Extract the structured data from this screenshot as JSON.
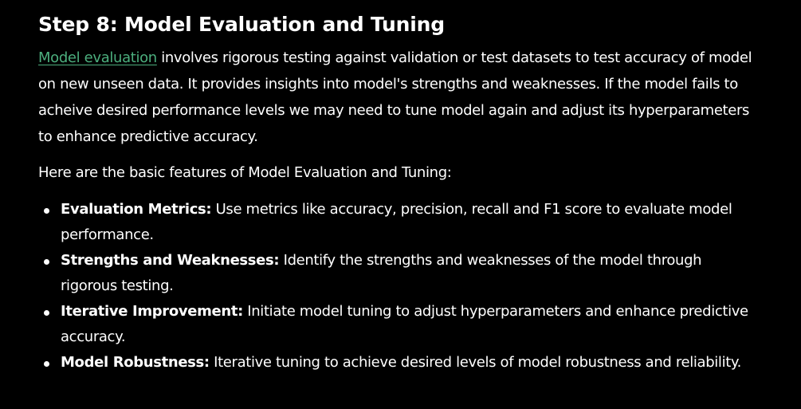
{
  "heading": "Step 8: Model Evaluation and Tuning",
  "intro": {
    "link_text": "Model evaluation",
    "text": " involves rigorous testing against validation or test datasets to test accuracy of model on new unseen data. It provides insights into model's strengths and weaknesses. If the model fails to acheive desired performance levels we may need to tune model again and adjust its hyperparameters to enhance predictive accuracy."
  },
  "lead": "Here are the basic features of Model Evaluation and Tuning:",
  "features": [
    {
      "term": "Evaluation Metrics:",
      "text": " Use metrics like accuracy, precision, recall and F1 score to evaluate model performance."
    },
    {
      "term": "Strengths and Weaknesses:",
      "text": " Identify the strengths and weaknesses of the model through rigorous testing."
    },
    {
      "term": "Iterative Improvement:",
      "text": " Initiate model tuning to adjust hyperparameters and enhance predictive accuracy."
    },
    {
      "term": "Model Robustness:",
      "text": " Iterative tuning to achieve desired levels of model robustness and reliability."
    }
  ],
  "colors": {
    "background": "#000000",
    "text": "#ffffff",
    "link": "#4caf7e"
  }
}
